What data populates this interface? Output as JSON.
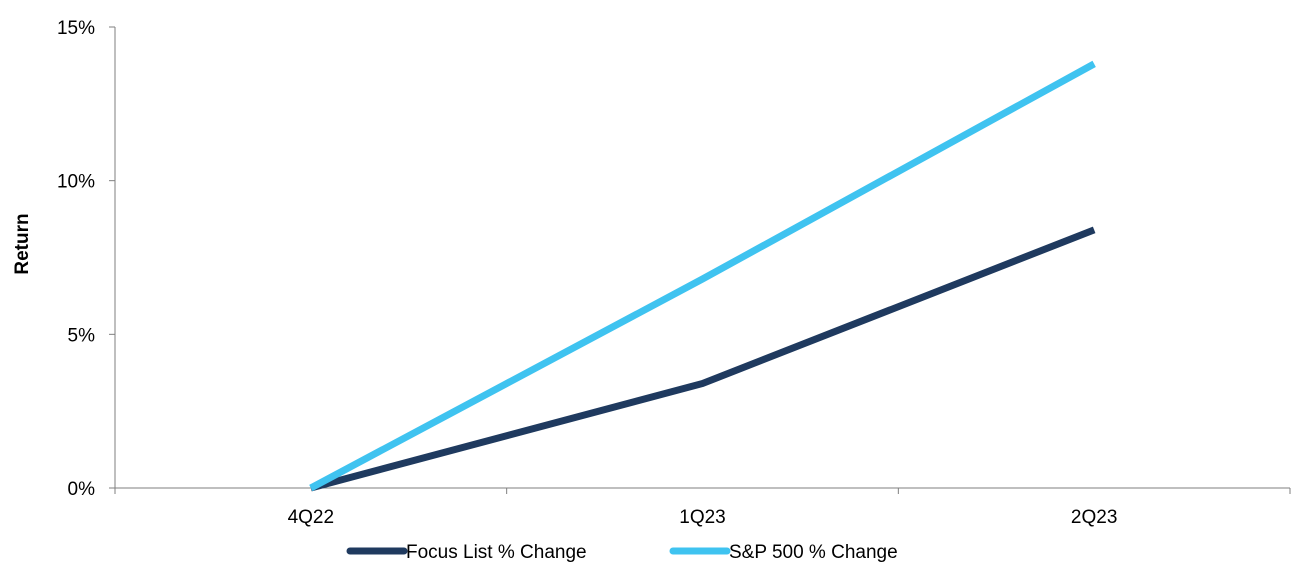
{
  "chart_data": {
    "type": "line",
    "title": "",
    "xlabel": "",
    "ylabel": "Return",
    "categories": [
      "4Q22",
      "1Q23",
      "2Q23"
    ],
    "x_range_categories": 3,
    "ylim": [
      0,
      0.15
    ],
    "yticks": [
      0,
      0.05,
      0.1,
      0.15
    ],
    "ytick_labels": [
      "0%",
      "5%",
      "10%",
      "15%"
    ],
    "grid": false,
    "legend_position": "bottom",
    "series": [
      {
        "name": "Focus List % Change",
        "color": "#1f3a5f",
        "values": [
          0.0,
          0.034,
          0.084
        ]
      },
      {
        "name": "S&P 500 % Change",
        "color": "#3fc3f0",
        "values": [
          0.0,
          0.068,
          0.138
        ]
      }
    ]
  }
}
